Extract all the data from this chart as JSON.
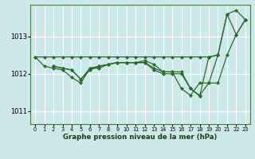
{
  "bg_color": "#cce8e8",
  "grid_color": "#ffffff",
  "line_color": "#2d6a2d",
  "marker_color": "#2d6a2d",
  "xlabel": "Graphe pression niveau de la mer (hPa)",
  "ylim": [
    1010.65,
    1013.85
  ],
  "xlim": [
    -0.5,
    23.5
  ],
  "yticks": [
    1011,
    1012,
    1013
  ],
  "xticks": [
    0,
    1,
    2,
    3,
    4,
    5,
    6,
    7,
    8,
    9,
    10,
    11,
    12,
    13,
    14,
    15,
    16,
    17,
    18,
    19,
    20,
    21,
    22,
    23
  ],
  "series": [
    {
      "x": [
        0,
        1,
        2,
        3,
        4,
        5,
        6,
        7,
        8,
        9,
        10,
        11,
        12,
        13,
        14,
        15,
        16,
        17,
        18,
        19,
        20,
        21,
        22,
        23
      ],
      "y": [
        1012.45,
        1012.45,
        1012.45,
        1012.45,
        1012.45,
        1012.45,
        1012.45,
        1012.45,
        1012.45,
        1012.45,
        1012.45,
        1012.45,
        1012.45,
        1012.45,
        1012.45,
        1012.45,
        1012.45,
        1012.45,
        1012.45,
        1012.45,
        1012.5,
        1013.6,
        1013.7,
        1013.45
      ]
    },
    {
      "x": [
        0,
        1,
        2,
        3,
        4,
        5,
        6,
        7,
        8,
        9,
        10,
        11,
        12,
        13,
        14,
        15,
        16,
        17,
        18,
        19,
        20,
        21,
        22,
        23
      ],
      "y": [
        1012.45,
        1012.2,
        1012.15,
        1012.1,
        1011.9,
        1011.75,
        1012.15,
        1012.15,
        1012.25,
        1012.3,
        1012.3,
        1012.3,
        1012.3,
        1012.15,
        1012.05,
        1012.05,
        1011.6,
        1011.42,
        1011.75,
        1011.75,
        1011.75,
        1012.5,
        1013.05,
        1013.45
      ]
    },
    {
      "x": [
        2,
        3,
        4,
        5,
        6,
        7,
        8,
        9,
        10,
        11,
        12,
        13,
        14,
        15,
        16,
        17,
        18,
        19,
        20,
        21,
        22,
        23
      ],
      "y": [
        1012.2,
        1012.15,
        1012.1,
        1011.85,
        1012.15,
        1012.2,
        1012.25,
        1012.3,
        1012.3,
        1012.3,
        1012.35,
        1012.25,
        1012.05,
        1012.05,
        1012.05,
        1011.6,
        1011.42,
        1011.75,
        1012.5,
        1013.6,
        1013.05,
        1013.45
      ]
    },
    {
      "x": [
        2,
        3,
        4,
        5,
        6,
        7,
        8,
        9,
        10,
        11,
        12,
        13,
        14,
        15,
        16,
        17,
        18,
        19,
        20
      ],
      "y": [
        1012.2,
        1012.15,
        1012.1,
        1011.85,
        1012.1,
        1012.2,
        1012.25,
        1012.3,
        1012.3,
        1012.3,
        1012.3,
        1012.1,
        1012.0,
        1012.0,
        1012.0,
        1011.6,
        1011.4,
        1012.45,
        1012.5
      ]
    }
  ]
}
